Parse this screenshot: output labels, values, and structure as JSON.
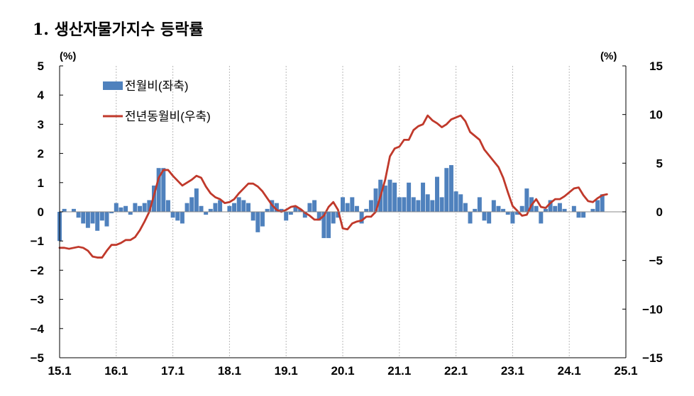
{
  "title": "1. 생산자물가지수 등락률",
  "chart_data": {
    "type": "bar+line",
    "title": "1. 생산자물가지수 등락률",
    "left_axis": {
      "unit": "(%)",
      "range": [
        -5,
        5
      ],
      "ticks": [
        "5",
        "4",
        "3",
        "2",
        "1",
        "0",
        "−1",
        "−2",
        "−3",
        "−4",
        "−5"
      ]
    },
    "right_axis": {
      "unit": "(%)",
      "range": [
        -15,
        15
      ],
      "ticks": [
        "15",
        "10",
        "5",
        "0",
        "−5",
        "−10",
        "−15"
      ]
    },
    "x_axis": {
      "ticks": [
        "15.1",
        "16.1",
        "17.1",
        "18.1",
        "19.1",
        "20.1",
        "21.1",
        "22.1",
        "23.1",
        "24.1",
        "25.1"
      ],
      "start": "2015-01",
      "end": "2025-01"
    },
    "legend": [
      {
        "name": "전월비(좌축)",
        "kind": "bar",
        "color": "#4F81BD"
      },
      {
        "name": "전년동월비(우축)",
        "kind": "line",
        "color": "#C0392B"
      }
    ],
    "series": [
      {
        "name": "전월비(좌축)",
        "axis": "left",
        "type": "bar",
        "values": [
          -1.0,
          0.1,
          0.0,
          0.1,
          -0.2,
          -0.4,
          -0.55,
          -0.4,
          -0.65,
          -0.3,
          -0.5,
          -0.05,
          0.3,
          0.15,
          0.2,
          -0.1,
          0.3,
          0.2,
          0.3,
          0.4,
          0.9,
          1.5,
          1.5,
          0.4,
          -0.2,
          -0.3,
          -0.4,
          0.3,
          0.5,
          0.8,
          0.2,
          -0.1,
          0.1,
          0.3,
          0.4,
          0.0,
          0.2,
          0.3,
          0.5,
          0.4,
          0.3,
          -0.3,
          -0.7,
          -0.5,
          0.1,
          0.4,
          0.3,
          0.1,
          -0.3,
          -0.1,
          0.2,
          0.1,
          -0.2,
          0.3,
          0.4,
          -0.3,
          -0.9,
          -0.9,
          -0.4,
          -0.2,
          0.5,
          0.3,
          0.5,
          0.2,
          -0.4,
          0.1,
          0.4,
          0.8,
          1.1,
          0.9,
          1.1,
          1.0,
          0.5,
          0.5,
          1.0,
          0.5,
          0.4,
          1.0,
          0.6,
          0.4,
          1.2,
          0.5,
          1.5,
          1.6,
          0.7,
          0.6,
          0.3,
          -0.4,
          0.1,
          0.5,
          -0.3,
          -0.4,
          0.4,
          0.2,
          0.1,
          -0.1,
          -0.4,
          -0.1,
          0.2,
          0.8,
          0.5,
          0.2,
          -0.4,
          0.1,
          0.4,
          0.2,
          0.3,
          0.1,
          0.0,
          0.2,
          -0.2,
          -0.2,
          0.0,
          0.1,
          0.4,
          0.6
        ]
      },
      {
        "name": "전년동월비(우축)",
        "axis": "right",
        "type": "line",
        "values": [
          -3.7,
          -3.7,
          -3.8,
          -3.7,
          -3.6,
          -3.7,
          -4.0,
          -4.6,
          -4.7,
          -4.7,
          -4.0,
          -3.4,
          -3.4,
          -3.2,
          -2.9,
          -2.9,
          -2.6,
          -1.9,
          -1.0,
          0.0,
          1.7,
          3.5,
          4.3,
          4.3,
          3.7,
          3.2,
          2.7,
          3.0,
          3.3,
          3.7,
          3.5,
          2.6,
          1.9,
          1.5,
          1.3,
          0.9,
          1.0,
          1.3,
          1.9,
          2.4,
          2.9,
          2.9,
          2.6,
          2.1,
          1.4,
          0.7,
          0.2,
          0.0,
          0.2,
          0.5,
          0.6,
          0.3,
          -0.1,
          -0.4,
          -0.8,
          -0.8,
          -0.4,
          0.5,
          1.0,
          0.2,
          -1.7,
          -1.8,
          -1.2,
          -1.0,
          -0.9,
          -0.5,
          -0.5,
          0.0,
          1.6,
          3.3,
          5.7,
          6.5,
          6.7,
          7.4,
          7.4,
          8.4,
          8.8,
          9.0,
          9.9,
          9.4,
          9.1,
          8.7,
          9.0,
          9.5,
          9.7,
          9.9,
          9.3,
          8.2,
          7.8,
          7.4,
          6.4,
          5.8,
          5.2,
          4.6,
          3.5,
          2.0,
          0.6,
          0.1,
          -0.4,
          -0.3,
          0.7,
          1.3,
          0.5,
          0.4,
          0.9,
          1.3,
          1.3,
          1.6,
          2.0,
          2.4,
          2.5,
          1.7,
          1.1,
          1.0,
          1.4,
          1.7,
          1.8
        ]
      }
    ]
  }
}
